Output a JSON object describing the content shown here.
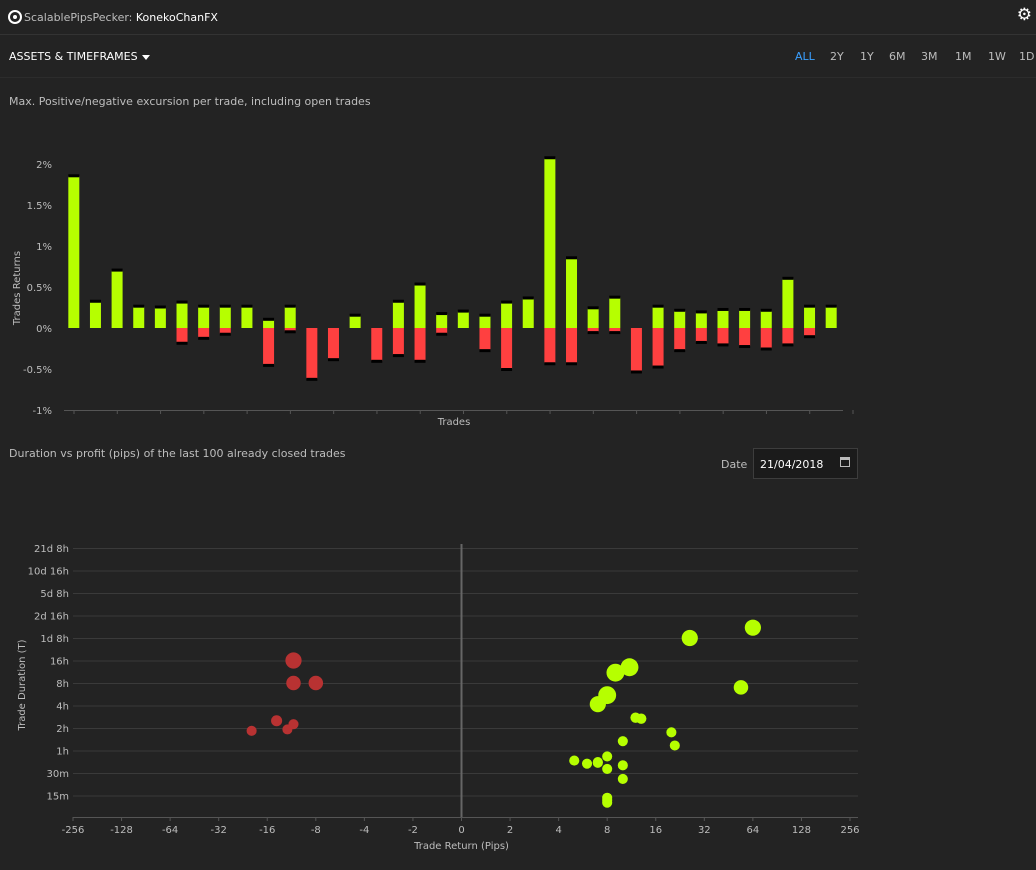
{
  "header": {
    "app_name": "ScalablePipsPecker:",
    "account": "KonekoChanFX",
    "settings_icon": "gear-icon"
  },
  "filters": {
    "assets_label": "ASSETS & TIMEFRAMES",
    "timeframes": [
      "ALL",
      "2Y",
      "1Y",
      "6M",
      "3M",
      "1M",
      "1W",
      "1D"
    ],
    "active": "ALL",
    "accent_color": "#3aa0ff"
  },
  "mfe_chart": {
    "title": "Max. Positive/negative excursion per trade, including open trades"
  },
  "scatter_chart": {
    "title": "Duration vs profit (pips) of the last 100 already closed trades",
    "date_label": "Date",
    "date_value": "21/04/2018",
    "calendar_icon": "calendar-icon"
  },
  "chart_data": [
    {
      "type": "bar",
      "ylabel": "Trades Returns",
      "xlabel": "Trades",
      "y_ticks": [
        "2%",
        "1.5%",
        "1%",
        "0.5%",
        "0%",
        "-0.5%",
        "-1%"
      ],
      "ylim": [
        -1.0,
        2.1
      ],
      "colors": {
        "positive": "#b6ff00",
        "negative": "#ff4040"
      },
      "series": [
        {
          "name": "",
          "values": [
            1.85,
            0.32,
            0.7,
            0.26,
            0.25,
            0.31,
            0.26,
            0.26,
            0.26,
            0.1,
            0.26,
            0.0,
            0.0,
            0.15,
            0.0,
            0.32,
            0.53,
            0.17,
            0.2,
            0.15,
            0.31,
            0.36,
            2.07,
            0.85,
            0.24,
            0.37,
            0.0,
            0.26,
            0.21,
            0.19,
            0.22,
            0.22,
            0.21,
            0.6,
            0.26,
            0.26
          ]
        },
        {
          "name": "",
          "values": [
            0.0,
            0.0,
            0.0,
            0.0,
            0.0,
            -0.18,
            -0.12,
            -0.07,
            0.0,
            -0.45,
            -0.04,
            -0.62,
            -0.38,
            0.0,
            -0.4,
            -0.33,
            -0.4,
            -0.07,
            0.0,
            -0.27,
            -0.5,
            0.0,
            -0.43,
            -0.43,
            -0.05,
            -0.05,
            -0.53,
            -0.47,
            -0.27,
            -0.17,
            -0.2,
            -0.22,
            -0.25,
            -0.2,
            -0.1,
            0.0
          ]
        }
      ]
    },
    {
      "type": "scatter",
      "xlabel": "Trade Return (Pips)",
      "ylabel": "Trade Duration (T)",
      "x_ticks": [
        "-256",
        "-128",
        "-64",
        "-32",
        "-16",
        "-8",
        "-4",
        "-2",
        "0",
        "2",
        "4",
        "8",
        "16",
        "32",
        "64",
        "128",
        "256"
      ],
      "y_ticks": [
        "21d 8h",
        "10d 16h",
        "5d 8h",
        "2d 16h",
        "1d 8h",
        "16h",
        "8h",
        "4h",
        "2h",
        "1h",
        "30m",
        "15m"
      ],
      "colors": {
        "positive": "#b6ff00",
        "negative": "#b83232"
      },
      "points": [
        {
          "x": -11,
          "y": "16h",
          "size": 3
        },
        {
          "x": -11,
          "y": "8h",
          "size": 2.5
        },
        {
          "x": -8,
          "y": "8h",
          "size": 2.5
        },
        {
          "x": -14,
          "y": "2h 30m",
          "size": 1.5
        },
        {
          "x": -11,
          "y": "2h 15m",
          "size": 1.2
        },
        {
          "x": -12,
          "y": "1h 55m",
          "size": 1.2
        },
        {
          "x": -20,
          "y": "1h 50m",
          "size": 1.2
        },
        {
          "x": 26,
          "y": "1d 8h",
          "size": 3
        },
        {
          "x": 64,
          "y": "1d 20h",
          "size": 3
        },
        {
          "x": 11,
          "y": "13h",
          "size": 3.5
        },
        {
          "x": 9,
          "y": "11h",
          "size": 3.5
        },
        {
          "x": 8,
          "y": "5h 30m",
          "size": 3.5
        },
        {
          "x": 7,
          "y": "4h 10m",
          "size": 3
        },
        {
          "x": 54,
          "y": "7h",
          "size": 2.5
        },
        {
          "x": 12,
          "y": "2h 45m",
          "size": 1.3
        },
        {
          "x": 13,
          "y": "2h 40m",
          "size": 1.3
        },
        {
          "x": 20,
          "y": "1h 45m",
          "size": 1.2
        },
        {
          "x": 21,
          "y": "1h 10m",
          "size": 1.2
        },
        {
          "x": 10,
          "y": "1h 20m",
          "size": 1.2
        },
        {
          "x": 8,
          "y": "50m",
          "size": 1.2
        },
        {
          "x": 5,
          "y": "44m",
          "size": 1.2
        },
        {
          "x": 6,
          "y": "40m",
          "size": 1.2
        },
        {
          "x": 7,
          "y": "42m",
          "size": 1.2
        },
        {
          "x": 7,
          "y": "41m",
          "size": 1.2
        },
        {
          "x": 8,
          "y": "34m",
          "size": 1.2
        },
        {
          "x": 10,
          "y": "38m",
          "size": 1.2
        },
        {
          "x": 10,
          "y": "25m",
          "size": 1.2
        },
        {
          "x": 8,
          "y": "14m",
          "size": 1.2
        },
        {
          "x": 8,
          "y": "12m",
          "size": 1.2
        },
        {
          "x": 8,
          "y": "13m",
          "size": 1.2
        }
      ]
    }
  ]
}
